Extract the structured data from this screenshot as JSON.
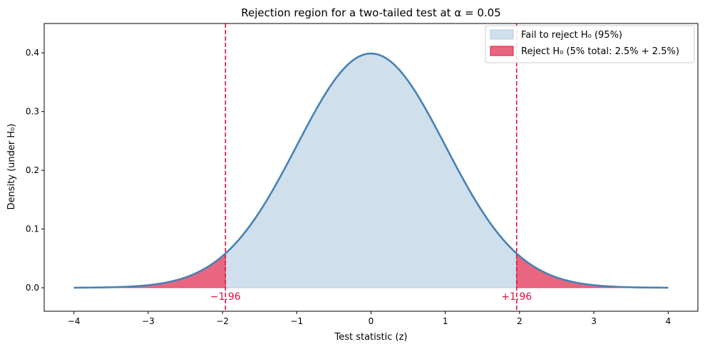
{
  "chart_data": {
    "type": "area",
    "title": "Rejection region for a two-tailed test at α = 0.05",
    "xlabel": "Test statistic (z)",
    "ylabel": "Density (under H₀)",
    "xlim": [
      -4.4,
      4.4
    ],
    "ylim": [
      -0.04,
      0.45
    ],
    "x_ticks": [
      -4,
      -3,
      -2,
      -1,
      0,
      1,
      2,
      3,
      4
    ],
    "x_tick_labels": [
      "−4",
      "−3",
      "−2",
      "−1",
      "0",
      "1",
      "2",
      "3",
      "4"
    ],
    "y_ticks": [
      0.0,
      0.1,
      0.2,
      0.3,
      0.4
    ],
    "y_tick_labels": [
      "0.0",
      "0.1",
      "0.2",
      "0.3",
      "0.4"
    ],
    "grid": false,
    "curve": {
      "distribution": "standard normal",
      "x_range": [
        -4,
        4
      ],
      "color": "#4682b4"
    },
    "critical_values": [
      {
        "x": -1.96,
        "label": "−1.96"
      },
      {
        "x": 1.96,
        "label": "+1.96"
      }
    ],
    "critical_line_color": "#dc143c",
    "regions": [
      {
        "name": "Fail to reject H₀ (95%)",
        "from": -1.96,
        "to": 1.96,
        "color": "#cfdfec"
      },
      {
        "name": "Reject H₀ (5% total: 2.5% + 2.5%)",
        "from": -4,
        "to": -1.96,
        "also_from": 1.96,
        "also_to": 4,
        "color": "#e8667f"
      }
    ],
    "legend": {
      "placement": "top-right",
      "entries": [
        "Fail to reject H₀ (95%)",
        "Reject H₀ (5% total: 2.5% + 2.5%)"
      ]
    }
  }
}
